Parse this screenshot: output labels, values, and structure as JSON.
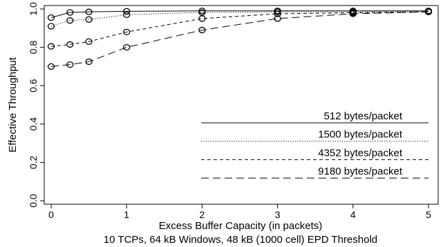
{
  "chart_data": {
    "type": "line",
    "title": "",
    "subtitle": "10 TCPs, 64 kB Windows, 48 kB (1000 cell) EPD Threshold",
    "xlabel": "Excess Buffer Capacity (in packets)",
    "ylabel": "Effective Throughput",
    "xlim": [
      0,
      5
    ],
    "ylim": [
      0,
      1.0
    ],
    "xticks": [
      0,
      1,
      2,
      3,
      4,
      5
    ],
    "yticks": [
      0.0,
      0.2,
      0.4,
      0.6,
      0.8,
      1.0
    ],
    "xtick_labels": [
      "0",
      "1",
      "2",
      "3",
      "4",
      "5"
    ],
    "ytick_labels": [
      "0.0",
      "0.2",
      "0.4",
      "0.6",
      "0.8",
      "1.0"
    ],
    "grid": false,
    "legend_position": "bottom-right",
    "marker": "circle-open",
    "x": [
      0,
      0.25,
      0.5,
      1,
      2,
      3,
      4,
      5
    ],
    "series": [
      {
        "name": "512 bytes/packet",
        "dash": "solid",
        "values": [
          0.955,
          0.982,
          0.985,
          0.988,
          0.99,
          0.99,
          0.99,
          0.99
        ]
      },
      {
        "name": "1500 bytes/packet",
        "dash": "dotted",
        "values": [
          0.91,
          0.94,
          0.945,
          0.97,
          0.982,
          0.985,
          0.985,
          0.987
        ]
      },
      {
        "name": "4352 bytes/packet",
        "dash": "short-dashed",
        "values": [
          0.805,
          0.815,
          0.83,
          0.88,
          0.95,
          0.975,
          0.98,
          0.985
        ]
      },
      {
        "name": "9180 bytes/packet",
        "dash": "long-dashed",
        "values": [
          0.7,
          0.71,
          0.725,
          0.8,
          0.89,
          0.95,
          0.975,
          0.985
        ]
      }
    ]
  }
}
